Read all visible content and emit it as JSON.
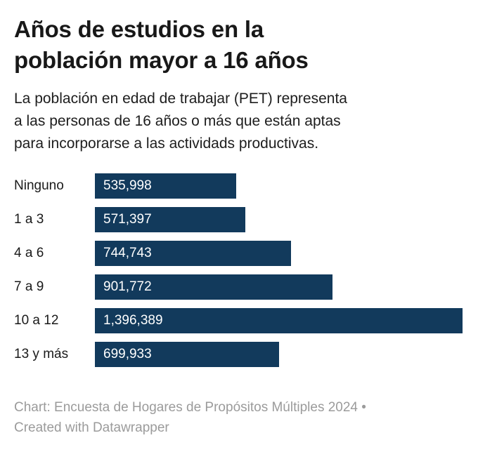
{
  "header": {
    "title_lines": [
      "Años de estudios en la",
      "población mayor a 16 años"
    ],
    "subtitle_lines": [
      "La población en edad de trabajar (PET) representa",
      "a las personas de 16 años o más que están aptas",
      "para incorporarse a las actividads productivas."
    ]
  },
  "chart_data": {
    "type": "bar",
    "orientation": "horizontal",
    "title": "Años de estudios en la población mayor a 16 años",
    "subtitle": "La población en edad de trabajar (PET) representa a las personas de 16 años o más que están aptas para incorporarse a las actividads productivas.",
    "categories": [
      "Ninguno",
      "1 a 3",
      "4 a 6",
      "7 a 9",
      "10 a 12",
      "13 y más"
    ],
    "values": [
      535998,
      571397,
      744743,
      901772,
      1396389,
      699933
    ],
    "value_labels": [
      "535,998",
      "571,397",
      "744,743",
      "901,772",
      "1,396,389",
      "699,933"
    ],
    "max_value": 1396389,
    "xlabel": "",
    "ylabel": "",
    "grid": false,
    "legend": false,
    "bar_color": "#123a5c",
    "value_label_color": "#ffffff"
  },
  "footer": {
    "lines": [
      "Chart: Encuesta de Hogares de Propósitos Múltiples 2024 •",
      "Created with Datawrapper"
    ],
    "text": "Chart: Encuesta de Hogares de Propósitos Múltiples 2024 • Created with Datawrapper"
  }
}
